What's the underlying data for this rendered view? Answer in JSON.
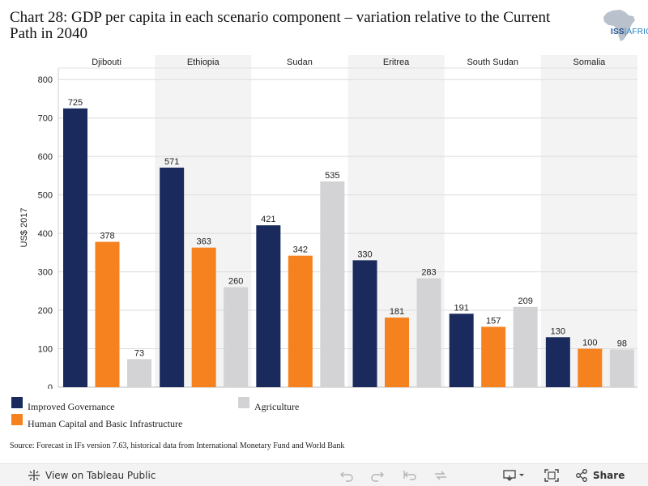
{
  "title": "Chart 28: GDP per capita in each scenario component – variation relative to the Current Path in 2040",
  "logo": {
    "icon": "africa-map-icon",
    "text_main": "ISS",
    "text_sub": "AFRICA"
  },
  "colors": {
    "improved_governance": "#1b2a5c",
    "human_capital": "#f5821f",
    "agriculture": "#d3d3d5",
    "panel_shade": "#f3f3f3",
    "grid": "#dcdcdc"
  },
  "chart_data": {
    "type": "bar",
    "ylabel": "US$ 2017",
    "ylim": [
      0,
      830
    ],
    "yticks": [
      0,
      100,
      200,
      300,
      400,
      500,
      600,
      700,
      800
    ],
    "categories": [
      "Djibouti",
      "Ethiopia",
      "Sudan",
      "Eritrea",
      "South Sudan",
      "Somalia"
    ],
    "series": [
      {
        "name": "Improved Governance",
        "color": "#1b2a5c",
        "values": [
          725,
          571,
          421,
          330,
          191,
          130
        ]
      },
      {
        "name": "Human Capital and Basic Infrastructure",
        "color": "#f5821f",
        "values": [
          378,
          363,
          342,
          181,
          157,
          100
        ]
      },
      {
        "name": "Agriculture",
        "color": "#d3d3d5",
        "values": [
          73,
          260,
          535,
          283,
          209,
          98
        ]
      }
    ],
    "grid": true,
    "legend_placement": "bottom"
  },
  "source": "Source: Forecast in IFs version 7.63, historical data from International Monetary Fund and World Bank",
  "toolbar": {
    "view_label": "View on Tableau Public",
    "share_label": "Share",
    "icons": [
      "tableau-icon",
      "undo-icon",
      "redo-icon",
      "revert-icon",
      "refresh-icon",
      "download-icon",
      "fullscreen-icon",
      "share-icon"
    ]
  }
}
